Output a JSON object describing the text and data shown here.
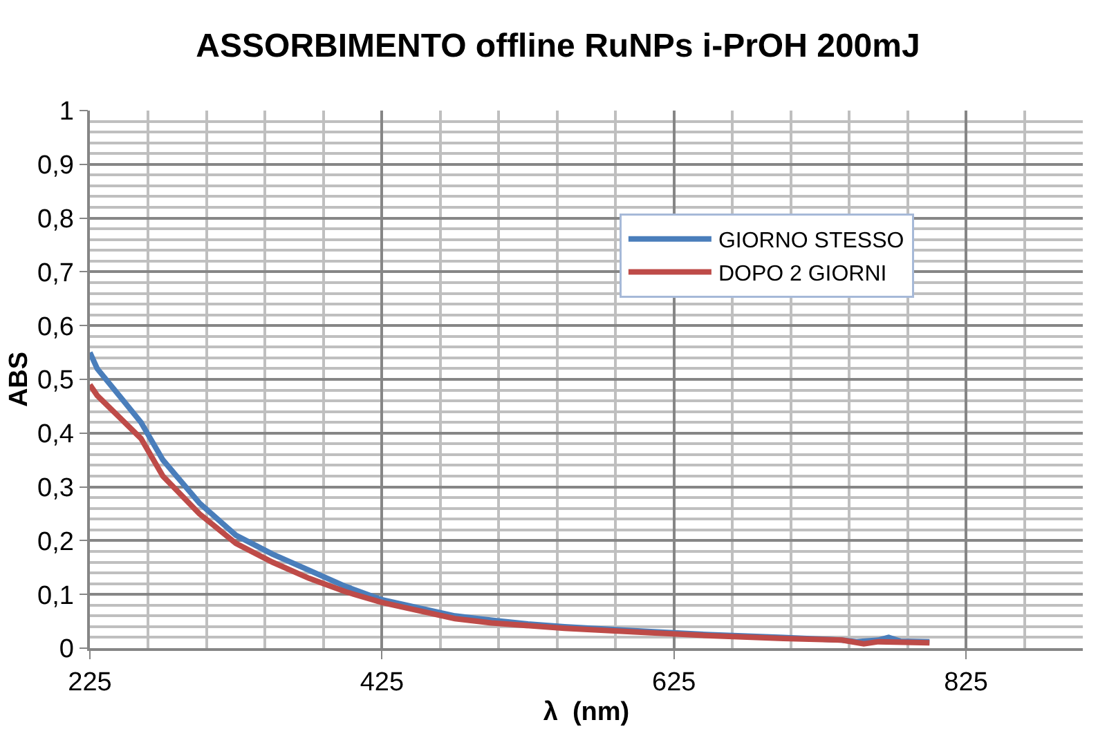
{
  "chart_data": {
    "type": "line",
    "title": "ASSORBIMENTO offline RuNPs i-PrOH 200mJ",
    "xlabel": "λ  (nm)",
    "ylabel": "ABS",
    "xlim": [
      225,
      905
    ],
    "xticks": [
      225,
      425,
      625,
      825
    ],
    "ylim": [
      0,
      1
    ],
    "yticks": [
      0,
      {
        "value": 0.1,
        "label": "0,1"
      },
      {
        "value": 0.2,
        "label": "0,2"
      },
      {
        "value": 0.3,
        "label": "0,3"
      },
      {
        "value": 0.4,
        "label": "0,4"
      },
      {
        "value": 0.5,
        "label": "0,5"
      },
      {
        "value": 0.6,
        "label": "0,6"
      },
      {
        "value": 0.7,
        "label": "0,7"
      },
      {
        "value": 0.8,
        "label": "0,8"
      },
      {
        "value": 0.9,
        "label": "0,9"
      },
      1
    ],
    "grid": true,
    "legend": "right",
    "marker": "none",
    "line_style": "solid",
    "series": [
      {
        "name": "GIORNO STESSO",
        "color": "#4a7ebb",
        "x": [
          225,
          230,
          245,
          260,
          275,
          300,
          325,
          350,
          375,
          400,
          425,
          450,
          475,
          500,
          525,
          550,
          600,
          650,
          700,
          740,
          750,
          765,
          772,
          780,
          800
        ],
        "values": [
          0.55,
          0.52,
          0.47,
          0.42,
          0.35,
          0.27,
          0.21,
          0.175,
          0.145,
          0.115,
          0.09,
          0.075,
          0.06,
          0.052,
          0.045,
          0.04,
          0.032,
          0.025,
          0.02,
          0.015,
          0.012,
          0.015,
          0.02,
          0.013,
          0.012
        ]
      },
      {
        "name": "DOPO 2 GIORNI",
        "color": "#be4b48",
        "x": [
          225,
          230,
          245,
          260,
          275,
          300,
          325,
          350,
          375,
          400,
          425,
          450,
          475,
          500,
          550,
          600,
          650,
          700,
          740,
          755,
          765,
          800
        ],
        "values": [
          0.49,
          0.47,
          0.43,
          0.39,
          0.32,
          0.25,
          0.195,
          0.16,
          0.13,
          0.105,
          0.085,
          0.07,
          0.055,
          0.047,
          0.037,
          0.03,
          0.023,
          0.018,
          0.015,
          0.008,
          0.012,
          0.01
        ]
      }
    ]
  }
}
